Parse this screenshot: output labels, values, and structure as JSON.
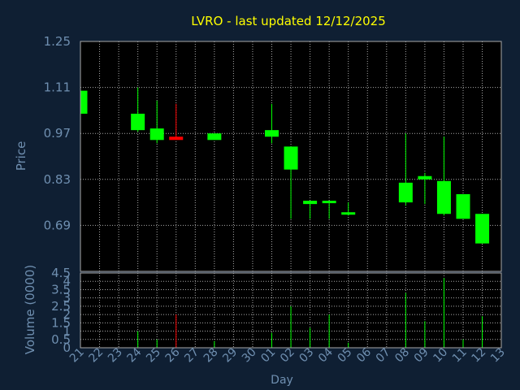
{
  "chart_data": {
    "type": "candlestick",
    "title": "LVRO - last updated 12/12/2025",
    "xlabel": "Day",
    "price": {
      "ylabel": "Price",
      "yticks": [
        "1.25",
        "1.11",
        "0.97",
        "0.83",
        "0.69"
      ],
      "ylim": [
        0.55,
        1.25
      ]
    },
    "volume": {
      "ylabel": "Volume (0000)",
      "yticks": [
        "4.5",
        "4",
        "3.5",
        "3",
        "2.5",
        "2",
        "1.5",
        "1",
        "0.5",
        "0"
      ],
      "ylim": [
        0,
        4.5
      ]
    },
    "x_ticks": [
      "21",
      "22",
      "23",
      "24",
      "25",
      "26",
      "27",
      "28",
      "29",
      "30",
      "01",
      "02",
      "03",
      "04",
      "05",
      "06",
      "07",
      "08",
      "09",
      "10",
      "11",
      "12",
      "13"
    ],
    "candles": [
      {
        "day": "21",
        "open": 1.03,
        "high": 1.1,
        "low": 1.03,
        "close": 1.1,
        "volume": 0
      },
      {
        "day": "24",
        "open": 0.98,
        "high": 1.11,
        "low": 0.975,
        "close": 1.03,
        "volume": 1.0
      },
      {
        "day": "25",
        "open": 0.95,
        "high": 1.07,
        "low": 0.94,
        "close": 0.985,
        "volume": 0.5
      },
      {
        "day": "26",
        "open": 0.96,
        "high": 1.06,
        "low": 0.95,
        "close": 0.95,
        "volume": 2.0
      },
      {
        "day": "28",
        "open": 0.95,
        "high": 0.97,
        "low": 0.95,
        "close": 0.97,
        "volume": 0.4
      },
      {
        "day": "01",
        "open": 0.96,
        "high": 1.06,
        "low": 0.94,
        "close": 0.98,
        "volume": 0.9
      },
      {
        "day": "02",
        "open": 0.86,
        "high": 0.93,
        "low": 0.71,
        "close": 0.93,
        "volume": 2.5
      },
      {
        "day": "03",
        "open": 0.755,
        "high": 0.765,
        "low": 0.71,
        "close": 0.765,
        "volume": 1.2
      },
      {
        "day": "04",
        "open": 0.76,
        "high": 0.765,
        "low": 0.71,
        "close": 0.765,
        "volume": 2.0
      },
      {
        "day": "05",
        "open": 0.725,
        "high": 0.76,
        "low": 0.72,
        "close": 0.73,
        "volume": 0.3
      },
      {
        "day": "08",
        "open": 0.76,
        "high": 0.97,
        "low": 0.75,
        "close": 0.82,
        "volume": 3.3
      },
      {
        "day": "09",
        "open": 0.83,
        "high": 0.85,
        "low": 0.755,
        "close": 0.84,
        "volume": 1.6
      },
      {
        "day": "10",
        "open": 0.725,
        "high": 0.96,
        "low": 0.72,
        "close": 0.825,
        "volume": 4.2
      },
      {
        "day": "11",
        "open": 0.71,
        "high": 0.785,
        "low": 0.71,
        "close": 0.785,
        "volume": 0.5
      },
      {
        "day": "12",
        "open": 0.635,
        "high": 0.725,
        "low": 0.635,
        "close": 0.725,
        "volume": 1.9
      }
    ],
    "up_color": "#00ff00",
    "down_color": "#ff0000",
    "grid": true
  },
  "colors": {
    "background": "#0f1f33",
    "plot": "#000000",
    "grid": "#a9a9a9",
    "text": "#6f8fb0",
    "title": "#ffff00"
  }
}
